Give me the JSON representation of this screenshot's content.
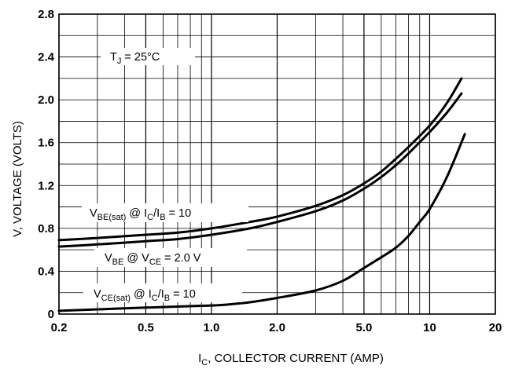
{
  "chart_data": {
    "type": "line",
    "title": "",
    "xlabel": {
      "main": "I",
      "sub": "C",
      "rest": ", COLLECTOR CURRENT (AMP)"
    },
    "ylabel": "V, VOLTAGE (VOLTS)",
    "x_scale": "log",
    "xlim": [
      0.2,
      20
    ],
    "ylim": [
      0,
      2.8
    ],
    "grid": true,
    "x_ticks": [
      {
        "value": 0.2,
        "label": "0.2"
      },
      {
        "value": 0.5,
        "label": "0.5"
      },
      {
        "value": 1,
        "label": "1.0"
      },
      {
        "value": 2,
        "label": "2.0"
      },
      {
        "value": 5,
        "label": "5.0"
      },
      {
        "value": 10,
        "label": "10"
      },
      {
        "value": 20,
        "label": "20"
      }
    ],
    "y_ticks": [
      {
        "value": 0,
        "label": "0"
      },
      {
        "value": 0.4,
        "label": "0.4"
      },
      {
        "value": 0.8,
        "label": "0.8"
      },
      {
        "value": 1.2,
        "label": "1.2"
      },
      {
        "value": 1.6,
        "label": "1.6"
      },
      {
        "value": 2.0,
        "label": "2.0"
      },
      {
        "value": 2.4,
        "label": "2.4"
      },
      {
        "value": 2.8,
        "label": "2.8"
      }
    ],
    "x_minor_grid": [
      0.3,
      0.4,
      0.6,
      0.7,
      0.8,
      0.9,
      3,
      4,
      6,
      7,
      8,
      9
    ],
    "y_grid": [
      0.2,
      0.4,
      0.6,
      0.8,
      1.0,
      1.2,
      1.4,
      1.6,
      1.8,
      2.0,
      2.2,
      2.4,
      2.6
    ],
    "series": [
      {
        "x": [
          0.2,
          0.3,
          0.5,
          0.7,
          1.0,
          1.5,
          2.0,
          3.0,
          4.0,
          5.0,
          6.0,
          7.0,
          8.0,
          10.0,
          12.0,
          14.0
        ],
        "y": [
          0.69,
          0.71,
          0.74,
          0.76,
          0.8,
          0.86,
          0.91,
          1.01,
          1.11,
          1.22,
          1.33,
          1.45,
          1.56,
          1.76,
          1.97,
          2.2
        ]
      },
      {
        "x": [
          0.2,
          0.3,
          0.5,
          0.7,
          1.0,
          1.5,
          2.0,
          3.0,
          4.0,
          5.0,
          6.0,
          7.0,
          8.0,
          10.0,
          12.0,
          14.0
        ],
        "y": [
          0.63,
          0.65,
          0.68,
          0.7,
          0.74,
          0.8,
          0.86,
          0.96,
          1.06,
          1.17,
          1.28,
          1.39,
          1.5,
          1.7,
          1.88,
          2.06
        ]
      },
      {
        "x": [
          0.2,
          0.5,
          1.0,
          1.2,
          1.5,
          2.0,
          3.0,
          4.0,
          5.0,
          6.0,
          7.0,
          8.0,
          9.0,
          10.0,
          12.0,
          14.5
        ],
        "y": [
          0.03,
          0.06,
          0.08,
          0.09,
          0.11,
          0.15,
          0.22,
          0.31,
          0.43,
          0.53,
          0.62,
          0.73,
          0.86,
          0.98,
          1.28,
          1.68
        ]
      }
    ],
    "annotations": [
      {
        "id": "tj",
        "parts": [
          {
            "t": "T"
          },
          {
            "t": "J",
            "sub": true
          },
          {
            "t": " = 25°C"
          }
        ]
      },
      {
        "id": "vbe-sat",
        "parts": [
          {
            "t": "V"
          },
          {
            "t": "BE(sat)",
            "sub": true
          },
          {
            "t": " @ I"
          },
          {
            "t": "C",
            "sub": true
          },
          {
            "t": "/I"
          },
          {
            "t": "B",
            "sub": true
          },
          {
            "t": " = 10"
          }
        ]
      },
      {
        "id": "vbe",
        "parts": [
          {
            "t": "V"
          },
          {
            "t": "BE",
            "sub": true
          },
          {
            "t": " @ V"
          },
          {
            "t": "CE",
            "sub": true
          },
          {
            "t": " = 2.0 V"
          }
        ]
      },
      {
        "id": "vce-sat",
        "parts": [
          {
            "t": "V"
          },
          {
            "t": "CE(sat)",
            "sub": true
          },
          {
            "t": " @ I"
          },
          {
            "t": "C",
            "sub": true
          },
          {
            "t": "/I"
          },
          {
            "t": "B",
            "sub": true
          },
          {
            "t": " = 10"
          }
        ]
      }
    ]
  }
}
